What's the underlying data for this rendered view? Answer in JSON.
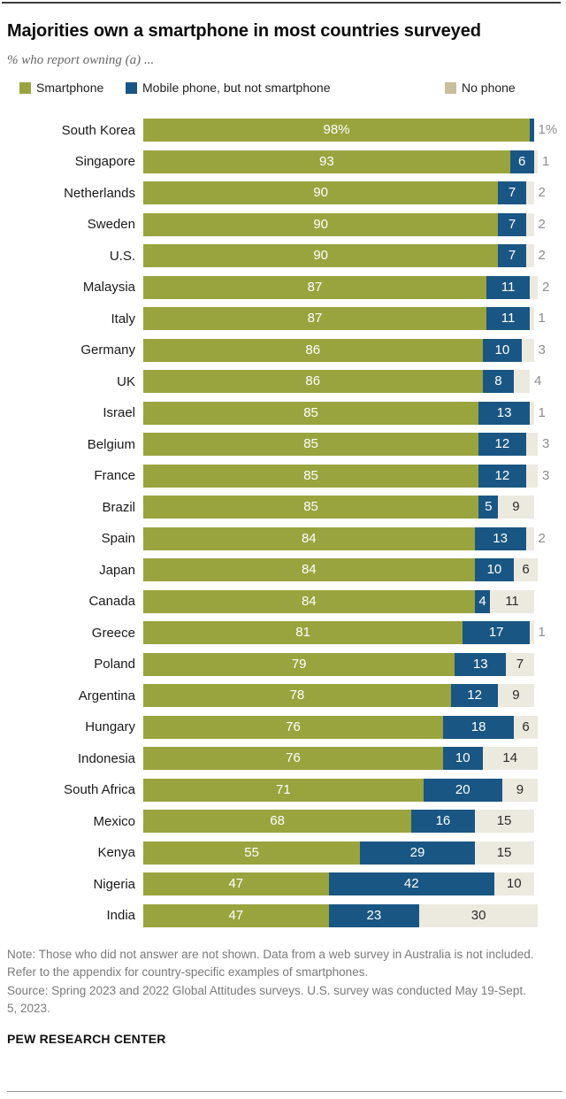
{
  "header": {
    "title": "Majorities own a smartphone in most countries surveyed",
    "subtitle": "% who report owning (a) ..."
  },
  "legend": [
    {
      "label": "Smartphone",
      "color": "#99A43F"
    },
    {
      "label": "Mobile phone, but not smartphone",
      "color": "#1A5683"
    },
    {
      "label": "No phone",
      "color": "#C6BE9D"
    }
  ],
  "chart_data": {
    "type": "bar",
    "stacked": true,
    "orientation": "horizontal",
    "xlim": [
      0,
      100
    ],
    "grid": false,
    "colors": {
      "smartphone": "#99A43F",
      "mobile": "#1A5683",
      "nophone_segment": "#ECE9DF"
    },
    "categories": [
      "South Korea",
      "Singapore",
      "Netherlands",
      "Sweden",
      "U.S.",
      "Malaysia",
      "Italy",
      "Germany",
      "UK",
      "Israel",
      "Belgium",
      "France",
      "Brazil",
      "Spain",
      "Japan",
      "Canada",
      "Greece",
      "Poland",
      "Argentina",
      "Hungary",
      "Indonesia",
      "South Africa",
      "Mexico",
      "Kenya",
      "Nigeria",
      "India"
    ],
    "series": [
      {
        "name": "Smartphone",
        "values": [
          98,
          93,
          90,
          90,
          90,
          87,
          87,
          86,
          86,
          85,
          85,
          85,
          85,
          84,
          84,
          84,
          81,
          79,
          78,
          76,
          76,
          71,
          68,
          55,
          47,
          47
        ]
      },
      {
        "name": "Mobile phone, but not smartphone",
        "values": [
          1,
          6,
          7,
          7,
          7,
          11,
          11,
          10,
          8,
          13,
          12,
          12,
          5,
          13,
          10,
          4,
          17,
          13,
          12,
          18,
          10,
          20,
          16,
          29,
          42,
          23
        ]
      },
      {
        "name": "No phone",
        "values": [
          null,
          1,
          2,
          2,
          2,
          2,
          1,
          3,
          4,
          1,
          3,
          3,
          9,
          2,
          6,
          11,
          1,
          7,
          9,
          6,
          14,
          9,
          15,
          15,
          10,
          30
        ]
      }
    ],
    "rows": [
      {
        "country": "South Korea",
        "smartphone": 98,
        "smartphone_label": "98%",
        "mobile": 1,
        "mobile_label": "",
        "nophone": 0,
        "nophone_label": "",
        "outside_label": "1%"
      },
      {
        "country": "Singapore",
        "smartphone": 93,
        "smartphone_label": "93",
        "mobile": 6,
        "mobile_label": "6",
        "nophone": 1,
        "nophone_label": "",
        "outside_label": "1"
      },
      {
        "country": "Netherlands",
        "smartphone": 90,
        "smartphone_label": "90",
        "mobile": 7,
        "mobile_label": "7",
        "nophone": 2,
        "nophone_label": "",
        "outside_label": "2"
      },
      {
        "country": "Sweden",
        "smartphone": 90,
        "smartphone_label": "90",
        "mobile": 7,
        "mobile_label": "7",
        "nophone": 2,
        "nophone_label": "",
        "outside_label": "2"
      },
      {
        "country": "U.S.",
        "smartphone": 90,
        "smartphone_label": "90",
        "mobile": 7,
        "mobile_label": "7",
        "nophone": 2,
        "nophone_label": "",
        "outside_label": "2"
      },
      {
        "country": "Malaysia",
        "smartphone": 87,
        "smartphone_label": "87",
        "mobile": 11,
        "mobile_label": "11",
        "nophone": 2,
        "nophone_label": "",
        "outside_label": "2"
      },
      {
        "country": "Italy",
        "smartphone": 87,
        "smartphone_label": "87",
        "mobile": 11,
        "mobile_label": "11",
        "nophone": 1,
        "nophone_label": "",
        "outside_label": "1"
      },
      {
        "country": "Germany",
        "smartphone": 86,
        "smartphone_label": "86",
        "mobile": 10,
        "mobile_label": "10",
        "nophone": 3,
        "nophone_label": "",
        "outside_label": "3"
      },
      {
        "country": "UK",
        "smartphone": 86,
        "smartphone_label": "86",
        "mobile": 8,
        "mobile_label": "8",
        "nophone": 4,
        "nophone_label": "",
        "outside_label": "4"
      },
      {
        "country": "Israel",
        "smartphone": 85,
        "smartphone_label": "85",
        "mobile": 13,
        "mobile_label": "13",
        "nophone": 1,
        "nophone_label": "",
        "outside_label": "1"
      },
      {
        "country": "Belgium",
        "smartphone": 85,
        "smartphone_label": "85",
        "mobile": 12,
        "mobile_label": "12",
        "nophone": 3,
        "nophone_label": "",
        "outside_label": "3"
      },
      {
        "country": "France",
        "smartphone": 85,
        "smartphone_label": "85",
        "mobile": 12,
        "mobile_label": "12",
        "nophone": 3,
        "nophone_label": "",
        "outside_label": "3"
      },
      {
        "country": "Brazil",
        "smartphone": 85,
        "smartphone_label": "85",
        "mobile": 5,
        "mobile_label": "5",
        "nophone": 9,
        "nophone_label": "9",
        "outside_label": ""
      },
      {
        "country": "Spain",
        "smartphone": 84,
        "smartphone_label": "84",
        "mobile": 13,
        "mobile_label": "13",
        "nophone": 2,
        "nophone_label": "",
        "outside_label": "2"
      },
      {
        "country": "Japan",
        "smartphone": 84,
        "smartphone_label": "84",
        "mobile": 10,
        "mobile_label": "10",
        "nophone": 6,
        "nophone_label": "6",
        "outside_label": ""
      },
      {
        "country": "Canada",
        "smartphone": 84,
        "smartphone_label": "84",
        "mobile": 4,
        "mobile_label": "4",
        "nophone": 11,
        "nophone_label": "11",
        "outside_label": ""
      },
      {
        "country": "Greece",
        "smartphone": 81,
        "smartphone_label": "81",
        "mobile": 17,
        "mobile_label": "17",
        "nophone": 1,
        "nophone_label": "",
        "outside_label": "1"
      },
      {
        "country": "Poland",
        "smartphone": 79,
        "smartphone_label": "79",
        "mobile": 13,
        "mobile_label": "13",
        "nophone": 7,
        "nophone_label": "7",
        "outside_label": ""
      },
      {
        "country": "Argentina",
        "smartphone": 78,
        "smartphone_label": "78",
        "mobile": 12,
        "mobile_label": "12",
        "nophone": 9,
        "nophone_label": "9",
        "outside_label": ""
      },
      {
        "country": "Hungary",
        "smartphone": 76,
        "smartphone_label": "76",
        "mobile": 18,
        "mobile_label": "18",
        "nophone": 6,
        "nophone_label": "6",
        "outside_label": ""
      },
      {
        "country": "Indonesia",
        "smartphone": 76,
        "smartphone_label": "76",
        "mobile": 10,
        "mobile_label": "10",
        "nophone": 14,
        "nophone_label": "14",
        "outside_label": ""
      },
      {
        "country": "South Africa",
        "smartphone": 71,
        "smartphone_label": "71",
        "mobile": 20,
        "mobile_label": "20",
        "nophone": 9,
        "nophone_label": "9",
        "outside_label": ""
      },
      {
        "country": "Mexico",
        "smartphone": 68,
        "smartphone_label": "68",
        "mobile": 16,
        "mobile_label": "16",
        "nophone": 15,
        "nophone_label": "15",
        "outside_label": ""
      },
      {
        "country": "Kenya",
        "smartphone": 55,
        "smartphone_label": "55",
        "mobile": 29,
        "mobile_label": "29",
        "nophone": 15,
        "nophone_label": "15",
        "outside_label": ""
      },
      {
        "country": "Nigeria",
        "smartphone": 47,
        "smartphone_label": "47",
        "mobile": 42,
        "mobile_label": "42",
        "nophone": 10,
        "nophone_label": "10",
        "outside_label": ""
      },
      {
        "country": "India",
        "smartphone": 47,
        "smartphone_label": "47",
        "mobile": 23,
        "mobile_label": "23",
        "nophone": 30,
        "nophone_label": "30",
        "outside_label": ""
      }
    ]
  },
  "footer": {
    "note": "Note: Those who did not answer are not shown. Data from a web survey in Australia is not included. Refer to the appendix for country-specific examples of smartphones.",
    "source": "Source: Spring 2023 and 2022 Global Attitudes surveys. U.S. survey was conducted May 19-Sept. 5, 2023.",
    "brand": "PEW RESEARCH CENTER"
  }
}
